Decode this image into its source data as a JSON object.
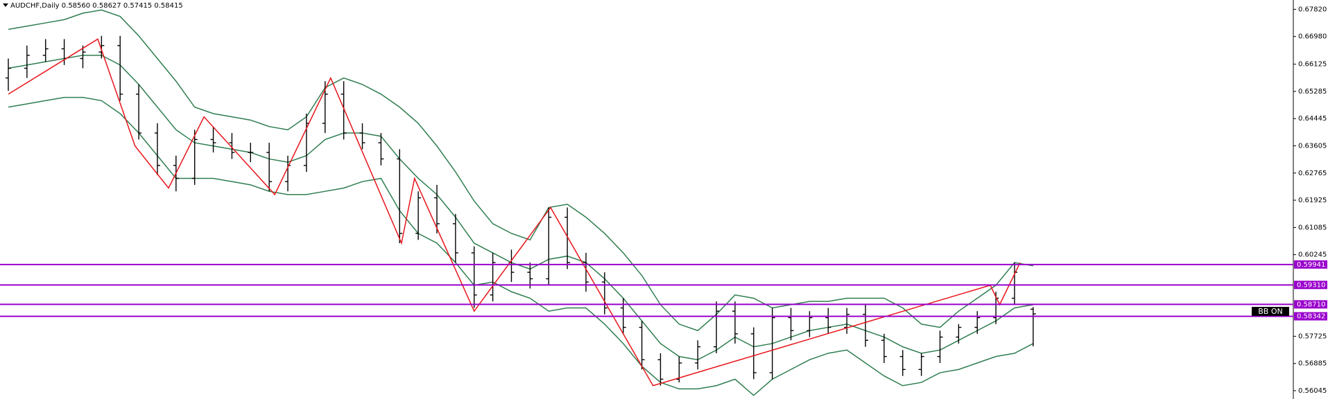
{
  "chart_data": {
    "type": "ohlc",
    "title": "AUDCHF,Daily 0.58560 0.58627 0.57415 0.58415",
    "indicator_label": "BB ON",
    "ylim": [
      0.55788,
      0.68107
    ],
    "yticks": [
      {
        "value": 0.6782,
        "label": "0.67820"
      },
      {
        "value": 0.6698,
        "label": "0.66980"
      },
      {
        "value": 0.66125,
        "label": "0.66125"
      },
      {
        "value": 0.65285,
        "label": "0.65285"
      },
      {
        "value": 0.64445,
        "label": "0.64445"
      },
      {
        "value": 0.63605,
        "label": "0.63605"
      },
      {
        "value": 0.62765,
        "label": "0.62765"
      },
      {
        "value": 0.61925,
        "label": "0.61925"
      },
      {
        "value": 0.61085,
        "label": "0.61085"
      },
      {
        "value": 0.60245,
        "label": "0.60245"
      },
      {
        "value": 0.57725,
        "label": "0.57725"
      },
      {
        "value": 0.56885,
        "label": "0.56885"
      },
      {
        "value": 0.56045,
        "label": "0.56045"
      }
    ],
    "bar_color": "#000000",
    "open": [
      0.657,
      0.66,
      0.664,
      0.666,
      0.663,
      0.665,
      0.667,
      0.652,
      0.64,
      0.63,
      0.626,
      0.638,
      0.637,
      0.634,
      0.634,
      0.625,
      0.63,
      0.643,
      0.652,
      0.64,
      0.637,
      0.632,
      0.609,
      0.62,
      0.612,
      0.603,
      0.59,
      0.6,
      0.597,
      0.595,
      0.614,
      0.6,
      0.594,
      0.586,
      0.58,
      0.57,
      0.564,
      0.569,
      0.574,
      0.585,
      0.578,
      0.566,
      0.583,
      0.579,
      0.583,
      0.58,
      0.584,
      0.576,
      0.571,
      0.567,
      0.571,
      0.577,
      0.58,
      0.583,
      0.589,
      0.5856
    ],
    "high": [
      0.663,
      0.667,
      0.669,
      0.669,
      0.667,
      0.67,
      0.67,
      0.655,
      0.643,
      0.633,
      0.641,
      0.642,
      0.64,
      0.637,
      0.637,
      0.633,
      0.646,
      0.656,
      0.656,
      0.643,
      0.64,
      0.635,
      0.622,
      0.624,
      0.615,
      0.605,
      0.603,
      0.604,
      0.6,
      0.617,
      0.617,
      0.603,
      0.597,
      0.589,
      0.582,
      0.572,
      0.571,
      0.576,
      0.588,
      0.588,
      0.58,
      0.586,
      0.586,
      0.585,
      0.586,
      0.586,
      0.587,
      0.578,
      0.573,
      0.572,
      0.579,
      0.581,
      0.585,
      0.591,
      0.6,
      0.58627
    ],
    "low": [
      0.653,
      0.657,
      0.662,
      0.661,
      0.66,
      0.663,
      0.65,
      0.638,
      0.627,
      0.622,
      0.624,
      0.634,
      0.632,
      0.631,
      0.622,
      0.622,
      0.628,
      0.64,
      0.638,
      0.635,
      0.63,
      0.606,
      0.607,
      0.609,
      0.6,
      0.586,
      0.588,
      0.594,
      0.592,
      0.593,
      0.598,
      0.591,
      0.584,
      0.578,
      0.567,
      0.562,
      0.563,
      0.567,
      0.572,
      0.575,
      0.564,
      0.564,
      0.576,
      0.577,
      0.578,
      0.578,
      0.574,
      0.569,
      0.565,
      0.565,
      0.569,
      0.575,
      0.578,
      0.581,
      0.587,
      0.57415
    ],
    "close": [
      0.66,
      0.664,
      0.666,
      0.663,
      0.665,
      0.667,
      0.652,
      0.64,
      0.63,
      0.626,
      0.638,
      0.637,
      0.634,
      0.634,
      0.625,
      0.63,
      0.643,
      0.652,
      0.64,
      0.637,
      0.632,
      0.609,
      0.62,
      0.612,
      0.603,
      0.59,
      0.6,
      0.597,
      0.595,
      0.614,
      0.6,
      0.594,
      0.586,
      0.58,
      0.57,
      0.564,
      0.569,
      0.574,
      0.585,
      0.578,
      0.566,
      0.583,
      0.579,
      0.583,
      0.58,
      0.584,
      0.576,
      0.571,
      0.567,
      0.571,
      0.577,
      0.58,
      0.583,
      0.589,
      0.597,
      0.58415
    ],
    "bands": [
      {
        "color": "#2e7d4f",
        "values": [
          0.66,
          0.661,
          0.662,
          0.663,
          0.664,
          0.664,
          0.661,
          0.655,
          0.648,
          0.641,
          0.637,
          0.636,
          0.635,
          0.634,
          0.632,
          0.631,
          0.633,
          0.638,
          0.64,
          0.64,
          0.639,
          0.632,
          0.626,
          0.621,
          0.614,
          0.606,
          0.603,
          0.6,
          0.598,
          0.601,
          0.602,
          0.6,
          0.595,
          0.589,
          0.582,
          0.575,
          0.571,
          0.57,
          0.573,
          0.577,
          0.574,
          0.575,
          0.577,
          0.579,
          0.58,
          0.581,
          0.579,
          0.577,
          0.574,
          0.572,
          0.573,
          0.576,
          0.579,
          0.582,
          0.586,
          0.587
        ]
      },
      {
        "color": "#2e7d4f",
        "values": [
          0.672,
          0.673,
          0.674,
          0.675,
          0.677,
          0.678,
          0.676,
          0.67,
          0.663,
          0.656,
          0.648,
          0.646,
          0.645,
          0.644,
          0.642,
          0.641,
          0.645,
          0.654,
          0.657,
          0.655,
          0.652,
          0.648,
          0.643,
          0.636,
          0.628,
          0.619,
          0.612,
          0.609,
          0.607,
          0.617,
          0.618,
          0.614,
          0.609,
          0.603,
          0.596,
          0.587,
          0.581,
          0.579,
          0.584,
          0.59,
          0.589,
          0.586,
          0.587,
          0.588,
          0.588,
          0.589,
          0.589,
          0.589,
          0.586,
          0.581,
          0.58,
          0.585,
          0.589,
          0.593,
          0.6,
          0.599
        ]
      },
      {
        "color": "#2e7d4f",
        "values": [
          0.648,
          0.649,
          0.65,
          0.651,
          0.651,
          0.65,
          0.646,
          0.64,
          0.633,
          0.626,
          0.626,
          0.626,
          0.625,
          0.624,
          0.622,
          0.621,
          0.621,
          0.622,
          0.623,
          0.625,
          0.626,
          0.616,
          0.609,
          0.606,
          0.6,
          0.593,
          0.594,
          0.591,
          0.589,
          0.585,
          0.586,
          0.586,
          0.581,
          0.575,
          0.568,
          0.563,
          0.561,
          0.561,
          0.562,
          0.564,
          0.559,
          0.564,
          0.567,
          0.57,
          0.572,
          0.573,
          0.569,
          0.565,
          0.562,
          0.563,
          0.566,
          0.567,
          0.569,
          0.571,
          0.572,
          0.575
        ]
      }
    ],
    "zigzag": {
      "color": "#e8141a",
      "x": [
        0,
        4.8,
        6.8,
        8.6,
        10.5,
        14.3,
        17.3,
        21.1,
        21.8,
        25,
        29.1,
        34.6,
        52.7,
        53.2,
        54.3
      ],
      "values": [
        0.652,
        0.669,
        0.636,
        0.623,
        0.645,
        0.621,
        0.657,
        0.606,
        0.626,
        0.585,
        0.617,
        0.562,
        0.593,
        0.587,
        0.6
      ]
    },
    "levels": {
      "color": "#9900cc",
      "values": [
        {
          "value": 0.59941,
          "label": "0.59941"
        },
        {
          "value": 0.5931,
          "label": "0.59310"
        },
        {
          "value": 0.5871,
          "label": "0.58710"
        },
        {
          "value": 0.58342,
          "label": "0.58342"
        }
      ]
    }
  }
}
